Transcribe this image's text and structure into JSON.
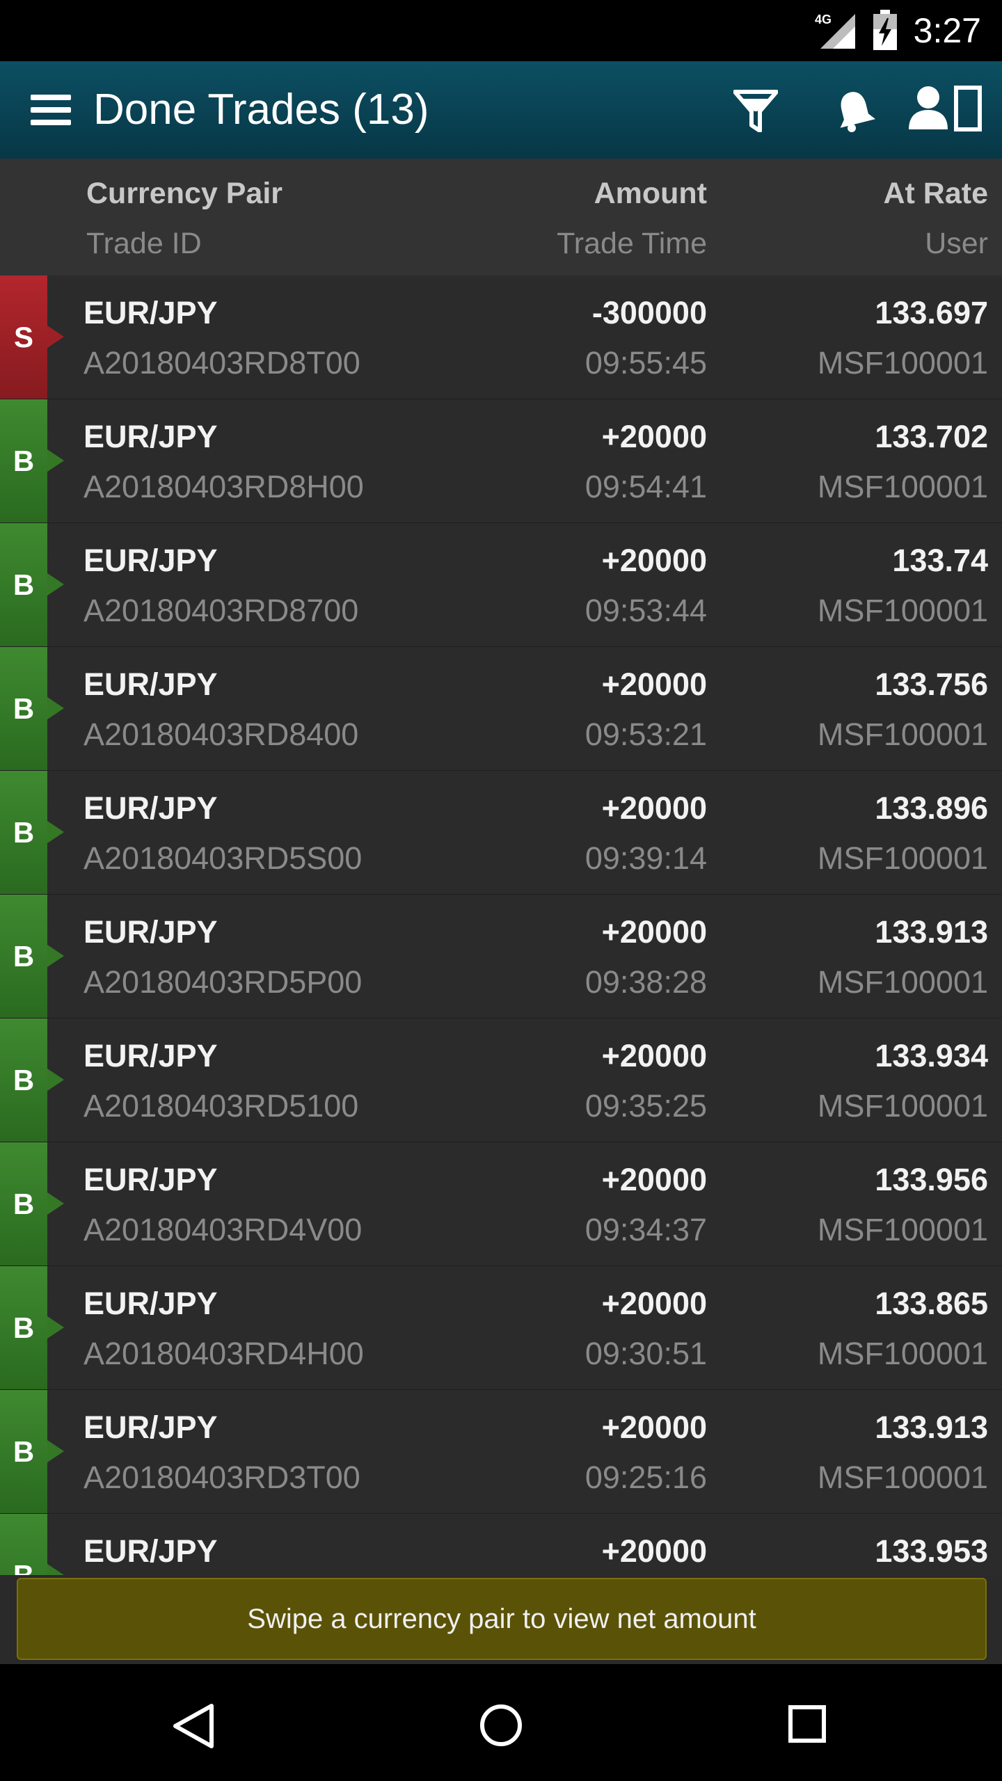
{
  "status_bar": {
    "network": "4G",
    "time": "3:27"
  },
  "app_bar": {
    "title": "Done Trades (13)",
    "icons": [
      "menu-icon",
      "filter-icon",
      "bell-icon",
      "user-icon"
    ]
  },
  "header": {
    "col1_primary": "Currency Pair",
    "col1_secondary": "Trade ID",
    "col2_primary": "Amount",
    "col2_secondary": "Trade Time",
    "col3_primary": "At Rate",
    "col3_secondary": "User"
  },
  "colors": {
    "sell": "#a02228",
    "buy": "#347826",
    "banner": "#5a5206"
  },
  "trades": [
    {
      "side": "S",
      "pair": "EUR/JPY",
      "trade_id": "A20180403RD8T00",
      "amount": "-300000",
      "time": "09:55:45",
      "rate": "133.697",
      "user": "MSF100001"
    },
    {
      "side": "B",
      "pair": "EUR/JPY",
      "trade_id": "A20180403RD8H00",
      "amount": "+20000",
      "time": "09:54:41",
      "rate": "133.702",
      "user": "MSF100001"
    },
    {
      "side": "B",
      "pair": "EUR/JPY",
      "trade_id": "A20180403RD8700",
      "amount": "+20000",
      "time": "09:53:44",
      "rate": "133.74",
      "user": "MSF100001"
    },
    {
      "side": "B",
      "pair": "EUR/JPY",
      "trade_id": "A20180403RD8400",
      "amount": "+20000",
      "time": "09:53:21",
      "rate": "133.756",
      "user": "MSF100001"
    },
    {
      "side": "B",
      "pair": "EUR/JPY",
      "trade_id": "A20180403RD5S00",
      "amount": "+20000",
      "time": "09:39:14",
      "rate": "133.896",
      "user": "MSF100001"
    },
    {
      "side": "B",
      "pair": "EUR/JPY",
      "trade_id": "A20180403RD5P00",
      "amount": "+20000",
      "time": "09:38:28",
      "rate": "133.913",
      "user": "MSF100001"
    },
    {
      "side": "B",
      "pair": "EUR/JPY",
      "trade_id": "A20180403RD5100",
      "amount": "+20000",
      "time": "09:35:25",
      "rate": "133.934",
      "user": "MSF100001"
    },
    {
      "side": "B",
      "pair": "EUR/JPY",
      "trade_id": "A20180403RD4V00",
      "amount": "+20000",
      "time": "09:34:37",
      "rate": "133.956",
      "user": "MSF100001"
    },
    {
      "side": "B",
      "pair": "EUR/JPY",
      "trade_id": "A20180403RD4H00",
      "amount": "+20000",
      "time": "09:30:51",
      "rate": "133.865",
      "user": "MSF100001"
    },
    {
      "side": "B",
      "pair": "EUR/JPY",
      "trade_id": "A20180403RD3T00",
      "amount": "+20000",
      "time": "09:25:16",
      "rate": "133.913",
      "user": "MSF100001"
    },
    {
      "side": "B",
      "pair": "EUR/JPY",
      "trade_id": "",
      "amount": "+20000",
      "time": "",
      "rate": "133.953",
      "user": ""
    }
  ],
  "banner": {
    "text": "Swipe a currency pair to view net amount"
  },
  "nav_bar": {
    "icons": [
      "back-icon",
      "home-icon",
      "recent-apps-icon"
    ]
  }
}
